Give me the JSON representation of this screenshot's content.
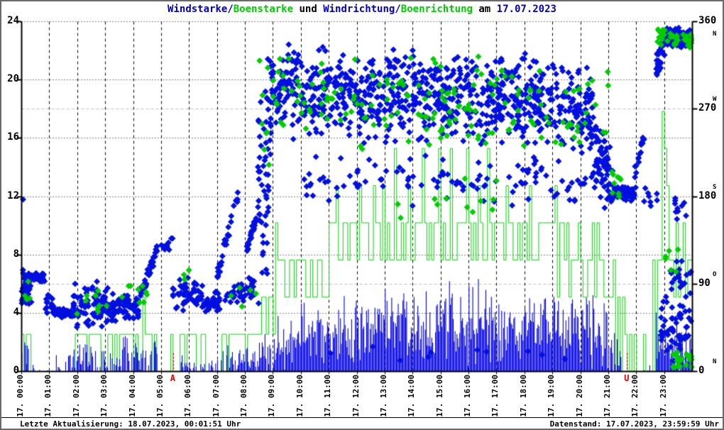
{
  "title": {
    "parts": [
      {
        "text": "Windstarke/",
        "color": "#0000cc"
      },
      {
        "text": "Boenstarke",
        "color": "#00cc00"
      },
      {
        "text": " und ",
        "color": "#000000"
      },
      {
        "text": "Windrichtung/",
        "color": "#0000cc"
      },
      {
        "text": "Boenrichtung",
        "color": "#00cc00"
      },
      {
        "text": " am ",
        "color": "#000000"
      },
      {
        "text": "17.07.2023",
        "color": "#0000cc"
      }
    ]
  },
  "footer": {
    "left": "Letzte Aktualisierung: 18.07.2023, 00:01:51 Uhr",
    "right": "Datenstand: 17.07.2023, 23:59:59 Uhr"
  },
  "chart_data": {
    "type": "mixed-bar-scatter",
    "seed": 7,
    "x_axis": {
      "range_hours": [
        0,
        24
      ],
      "hours": [
        "17. 00:00",
        "17. 01:00",
        "17. 02:00",
        "17. 03:00",
        "17. 04:00",
        "17. 05:00",
        "17. 06:00",
        "17. 07:00",
        "17. 08:00",
        "17. 09:00",
        "17. 10:00",
        "17. 11:00",
        "17. 12:00",
        "17. 13:00",
        "17. 14:00",
        "17. 15:00",
        "17. 16:00",
        "17. 17:00",
        "17. 18:00",
        "17. 19:00",
        "17. 20:00",
        "17. 21:00",
        "17. 22:00",
        "17. 23:00"
      ]
    },
    "y_left": {
      "range": [
        0,
        24
      ],
      "ticks": [
        0,
        4,
        8,
        12,
        16,
        20,
        24
      ]
    },
    "y_right": {
      "range": [
        0,
        360
      ],
      "ticks": [
        {
          "value": 360,
          "dir": "N"
        },
        {
          "value": 270,
          "dir": "W"
        },
        {
          "value": 180,
          "dir": "S"
        },
        {
          "value": 90,
          "dir": "O"
        },
        {
          "value": 0,
          "dir": "N"
        }
      ]
    },
    "markers": {
      "sunrise": {
        "label": "A",
        "hour": 5.43
      },
      "sunset": {
        "label": "U",
        "hour": 21.67
      },
      "color": "#dd0000"
    },
    "colors": {
      "wind_bar": "#0000e0",
      "gust_bar": "#00d400",
      "wind_point": "#0010e0",
      "gust_point": "#00cc00",
      "grid_major": "#000000",
      "grid_right": "#bdbdbd",
      "frame": "#000000"
    },
    "series": {
      "wind_speed_bars": {
        "style": "impulses",
        "step_minutes": 2,
        "segments_t0_t1_mean_var_duty": [
          [
            0.0,
            0.25,
            0.9,
            0.9,
            0.9
          ],
          [
            0.25,
            0.8,
            0.15,
            0.3,
            0.25
          ],
          [
            0.8,
            1.2,
            0.05,
            0.15,
            0.15
          ],
          [
            1.2,
            1.75,
            0.5,
            0.6,
            0.5
          ],
          [
            1.75,
            2.6,
            0.9,
            0.9,
            0.85
          ],
          [
            2.6,
            3.4,
            0.6,
            0.7,
            0.6
          ],
          [
            3.4,
            4.85,
            1.1,
            1.2,
            0.9
          ],
          [
            4.85,
            5.7,
            0.05,
            0.2,
            0.1
          ],
          [
            5.7,
            6.4,
            0.5,
            0.6,
            0.6
          ],
          [
            6.4,
            7.2,
            0.4,
            0.5,
            0.5
          ],
          [
            7.2,
            8.5,
            0.8,
            0.8,
            0.8
          ],
          [
            8.5,
            9.0,
            1.3,
            1.2,
            0.95
          ],
          [
            9.0,
            9.5,
            2.0,
            1.6,
            1.0
          ],
          [
            9.5,
            10.5,
            2.5,
            1.9,
            1.0
          ],
          [
            10.5,
            11.5,
            2.8,
            2.1,
            1.0
          ],
          [
            11.5,
            13.0,
            3.1,
            2.2,
            1.0
          ],
          [
            13.0,
            16.0,
            3.4,
            2.4,
            1.0
          ],
          [
            16.0,
            18.0,
            3.2,
            2.3,
            1.0
          ],
          [
            18.0,
            20.0,
            3.0,
            2.1,
            1.0
          ],
          [
            20.0,
            21.0,
            2.7,
            2.0,
            1.0
          ],
          [
            21.0,
            21.45,
            1.8,
            1.5,
            0.95
          ],
          [
            21.45,
            22.7,
            0.1,
            0.3,
            0.12
          ],
          [
            22.7,
            23.3,
            2.0,
            1.8,
            0.95
          ],
          [
            23.3,
            24.0,
            1.6,
            1.6,
            0.95
          ]
        ]
      },
      "gust_speed_steps": {
        "style": "histeps",
        "step_minutes": 5,
        "quantum": 2.55,
        "segments_t0_t1_lo_hi_duty": [
          [
            0.0,
            0.33,
            2.55,
            2.55,
            0.9
          ],
          [
            0.33,
            1.9,
            2.55,
            2.55,
            0.06
          ],
          [
            1.9,
            2.9,
            2.55,
            2.55,
            0.8
          ],
          [
            2.9,
            3.5,
            2.55,
            2.55,
            0.45
          ],
          [
            3.5,
            4.85,
            2.55,
            2.55,
            0.85
          ],
          [
            4.85,
            5.72,
            2.55,
            2.55,
            0.04
          ],
          [
            5.72,
            6.25,
            2.55,
            2.55,
            0.8
          ],
          [
            6.25,
            6.75,
            2.55,
            2.55,
            0.35
          ],
          [
            6.75,
            7.2,
            2.55,
            2.55,
            0.08
          ],
          [
            7.2,
            8.55,
            2.55,
            2.55,
            0.85
          ],
          [
            8.55,
            9.05,
            2.55,
            5.1,
            0.9
          ],
          [
            9.05,
            9.35,
            7.65,
            7.65,
            1.0
          ],
          [
            9.35,
            11.0,
            5.1,
            7.65,
            1.0
          ],
          [
            11.0,
            13.5,
            7.65,
            10.2,
            1.0
          ],
          [
            13.5,
            17.0,
            7.65,
            10.2,
            1.0
          ],
          [
            17.0,
            19.0,
            7.65,
            10.2,
            1.0
          ],
          [
            19.0,
            20.5,
            5.1,
            10.2,
            1.0
          ],
          [
            20.5,
            21.25,
            5.1,
            7.65,
            1.0
          ],
          [
            21.25,
            21.55,
            5.1,
            5.1,
            0.7
          ],
          [
            21.55,
            21.85,
            2.55,
            2.55,
            0.4
          ],
          [
            21.85,
            22.6,
            2.55,
            2.55,
            0.05
          ],
          [
            22.6,
            24.0,
            5.1,
            7.65,
            0.95
          ]
        ],
        "spikes_t_value": [
          [
            4.35,
            5.1
          ],
          [
            9.08,
            10.2
          ],
          [
            11.25,
            12.75
          ],
          [
            11.5,
            10.2
          ],
          [
            12.1,
            12.75
          ],
          [
            12.55,
            12.75
          ],
          [
            12.9,
            12.75
          ],
          [
            13.3,
            15.3
          ],
          [
            13.8,
            12.75
          ],
          [
            14.3,
            15.3
          ],
          [
            14.9,
            15.3
          ],
          [
            15.3,
            15.3
          ],
          [
            15.9,
            15.3
          ],
          [
            16.3,
            12.75
          ],
          [
            16.7,
            15.3
          ],
          [
            17.3,
            12.75
          ],
          [
            18.2,
            12.75
          ],
          [
            19.1,
            12.75
          ],
          [
            19.9,
            10.2
          ],
          [
            20.6,
            10.2
          ],
          [
            22.95,
            17.85
          ],
          [
            23.0,
            15.3
          ],
          [
            23.1,
            12.75
          ],
          [
            23.45,
            10.2
          ],
          [
            23.7,
            10.2
          ]
        ]
      },
      "wind_direction_points": {
        "style": "diamonds",
        "segments_t0_t1_d0_d1_spread_n": [
          [
            0.0,
            0.35,
            80,
            95,
            26,
            42
          ],
          [
            0.35,
            0.85,
            98,
            96,
            7,
            26
          ],
          [
            0.85,
            1.15,
            72,
            66,
            14,
            18
          ],
          [
            1.15,
            1.85,
            60,
            60,
            5,
            48
          ],
          [
            1.85,
            3.15,
            68,
            70,
            25,
            85
          ],
          [
            3.15,
            4.2,
            64,
            68,
            17,
            70
          ],
          [
            4.2,
            4.85,
            74,
            126,
            8,
            42
          ],
          [
            4.85,
            5.4,
            127,
            133,
            9,
            12
          ],
          [
            5.4,
            6.5,
            80,
            80,
            20,
            52
          ],
          [
            6.5,
            7.1,
            70,
            73,
            12,
            36
          ],
          [
            7.0,
            7.85,
            100,
            193,
            9,
            30
          ],
          [
            7.25,
            8.35,
            76,
            86,
            15,
            42
          ],
          [
            8.05,
            8.45,
            126,
            166,
            7,
            20
          ],
          [
            8.45,
            8.9,
            200,
            200,
            145,
            55
          ],
          [
            8.9,
            9.6,
            285,
            300,
            48,
            55
          ],
          [
            9.6,
            12.0,
            288,
            290,
            50,
            170
          ],
          [
            12.0,
            15.0,
            282,
            286,
            54,
            210
          ],
          [
            15.0,
            18.0,
            286,
            281,
            52,
            210
          ],
          [
            18.0,
            20.5,
            280,
            268,
            50,
            175
          ],
          [
            10.0,
            21.0,
            196,
            196,
            28,
            120
          ],
          [
            11.0,
            21.0,
            16,
            16,
            14,
            10
          ],
          [
            20.5,
            21.15,
            228,
            198,
            35,
            55
          ],
          [
            21.15,
            21.95,
            184,
            183,
            8,
            95
          ],
          [
            21.9,
            22.3,
            192,
            246,
            16,
            16
          ],
          [
            22.25,
            22.75,
            181,
            181,
            13,
            8
          ],
          [
            22.7,
            23.05,
            308,
            340,
            22,
            28
          ],
          [
            23.0,
            23.97,
            345,
            343,
            11,
            115
          ],
          [
            22.85,
            23.97,
            44,
            40,
            36,
            55
          ],
          [
            23.15,
            23.95,
            100,
            96,
            22,
            22
          ],
          [
            23.35,
            23.85,
            168,
            160,
            18,
            10
          ]
        ],
        "extra_points_t_deg": [
          [
            0.05,
            177
          ]
        ]
      },
      "gust_direction_points": {
        "style": "diamonds",
        "segments_t0_t1_d0_d1_spread_n": [
          [
            0.05,
            0.3,
            85,
            85,
            18,
            4
          ],
          [
            1.9,
            3.2,
            72,
            75,
            22,
            9
          ],
          [
            3.3,
            4.6,
            80,
            82,
            22,
            9
          ],
          [
            5.75,
            6.3,
            95,
            95,
            14,
            3
          ],
          [
            7.3,
            8.5,
            80,
            82,
            18,
            5
          ],
          [
            8.5,
            9.0,
            255,
            255,
            85,
            8
          ],
          [
            9.0,
            12.0,
            282,
            286,
            48,
            42
          ],
          [
            12.0,
            17.0,
            272,
            276,
            58,
            75
          ],
          [
            17.0,
            21.0,
            276,
            268,
            52,
            48
          ],
          [
            13.0,
            17.0,
            180,
            180,
            25,
            12
          ],
          [
            21.0,
            21.5,
            196,
            190,
            18,
            9
          ],
          [
            22.7,
            23.97,
            343,
            342,
            11,
            38
          ],
          [
            23.3,
            23.97,
            12,
            10,
            11,
            22
          ],
          [
            23.0,
            23.5,
            118,
            110,
            26,
            6
          ]
        ],
        "extra_points_t_deg": []
      }
    }
  }
}
